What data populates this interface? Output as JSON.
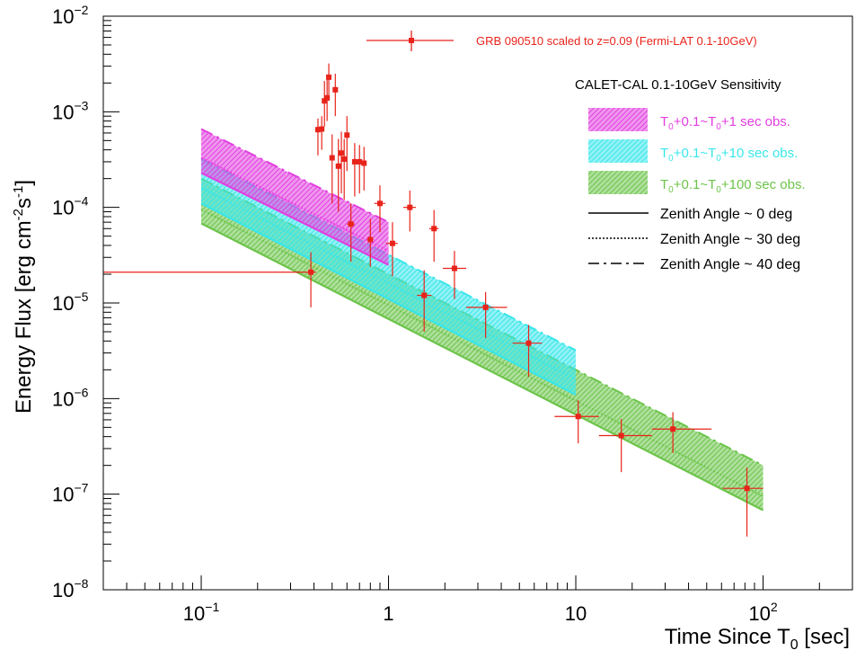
{
  "chart_data": {
    "type": "scatter",
    "xscale": "log",
    "yscale": "log",
    "xlim": [
      0.03,
      300
    ],
    "ylim": [
      1e-08,
      0.01
    ],
    "xlabel": {
      "main": "Time Since T",
      "sub": "0",
      "tail": " [sec]"
    },
    "ylabel": "Energy Flux [erg cm-2s-1]",
    "x_ticks": [
      {
        "value": 0.1,
        "base": "10",
        "exp": "−1"
      },
      {
        "value": 1,
        "base": "1",
        "exp": ""
      },
      {
        "value": 10,
        "base": "10",
        "exp": ""
      },
      {
        "value": 100,
        "base": "10",
        "exp": "2"
      }
    ],
    "y_ticks": [
      {
        "value": 0.01,
        "base": "10",
        "exp": "−2"
      },
      {
        "value": 0.001,
        "base": "10",
        "exp": "−3"
      },
      {
        "value": 0.0001,
        "base": "10",
        "exp": "−4"
      },
      {
        "value": 1e-05,
        "base": "10",
        "exp": "−5"
      },
      {
        "value": 1e-06,
        "base": "10",
        "exp": "−6"
      },
      {
        "value": 1e-07,
        "base": "10",
        "exp": "−7"
      },
      {
        "value": 1e-08,
        "base": "10",
        "exp": "−8"
      }
    ],
    "grb": {
      "name": "GRB 090510 scaled to z=0.09 (Fermi-LAT 0.1-10GeV)",
      "color": "#e8231a",
      "points": [
        {
          "x": 0.385,
          "xlo": 0.03,
          "xhi": 0.41,
          "y": 2.1e-05,
          "ylo": 9e-06,
          "yhi": 3.4e-05
        },
        {
          "x": 0.42,
          "xlo": 0.41,
          "xhi": 0.43,
          "y": 0.00065,
          "ylo": 0.00035,
          "yhi": 0.00085
        },
        {
          "x": 0.44,
          "xlo": 0.43,
          "xhi": 0.45,
          "y": 0.00066,
          "ylo": 0.0004,
          "yhi": 0.0009
        },
        {
          "x": 0.455,
          "xlo": 0.445,
          "xhi": 0.465,
          "y": 0.0013,
          "ylo": 0.0007,
          "yhi": 0.0021
        },
        {
          "x": 0.47,
          "xlo": 0.46,
          "xhi": 0.48,
          "y": 0.0014,
          "ylo": 0.0008,
          "yhi": 0.0022
        },
        {
          "x": 0.48,
          "xlo": 0.47,
          "xhi": 0.49,
          "y": 0.0023,
          "ylo": 0.0013,
          "yhi": 0.0032
        },
        {
          "x": 0.5,
          "xlo": 0.49,
          "xhi": 0.51,
          "y": 0.00033,
          "ylo": 0.00011,
          "yhi": 0.00058
        },
        {
          "x": 0.52,
          "xlo": 0.505,
          "xhi": 0.535,
          "y": 0.0017,
          "ylo": 0.0009,
          "yhi": 0.0025
        },
        {
          "x": 0.54,
          "xlo": 0.525,
          "xhi": 0.555,
          "y": 0.00027,
          "ylo": 9e-05,
          "yhi": 0.00052
        },
        {
          "x": 0.56,
          "xlo": 0.545,
          "xhi": 0.575,
          "y": 0.00037,
          "ylo": 0.00014,
          "yhi": 0.00062
        },
        {
          "x": 0.58,
          "xlo": 0.565,
          "xhi": 0.595,
          "y": 0.00032,
          "ylo": 0.00012,
          "yhi": 0.00052
        },
        {
          "x": 0.6,
          "xlo": 0.585,
          "xhi": 0.615,
          "y": 0.00057,
          "ylo": 0.00024,
          "yhi": 0.0009
        },
        {
          "x": 0.63,
          "xlo": 0.6,
          "xhi": 0.66,
          "y": 6.7e-05,
          "ylo": 2.7e-05,
          "yhi": 0.00011
        },
        {
          "x": 0.66,
          "xlo": 0.64,
          "xhi": 0.68,
          "y": 0.0003,
          "ylo": 0.00013,
          "yhi": 0.00047
        },
        {
          "x": 0.7,
          "xlo": 0.68,
          "xhi": 0.72,
          "y": 0.0003,
          "ylo": 0.00014,
          "yhi": 0.00045
        },
        {
          "x": 0.74,
          "xlo": 0.72,
          "xhi": 0.76,
          "y": 0.00029,
          "ylo": 0.00015,
          "yhi": 0.00043
        },
        {
          "x": 0.8,
          "xlo": 0.77,
          "xhi": 0.83,
          "y": 4.6e-05,
          "ylo": 2.4e-05,
          "yhi": 7.6e-05
        },
        {
          "x": 0.9,
          "xlo": 0.84,
          "xhi": 0.96,
          "y": 0.00011,
          "ylo": 5.5e-05,
          "yhi": 0.00017
        },
        {
          "x": 1.05,
          "xlo": 0.97,
          "xhi": 1.12,
          "y": 4.2e-05,
          "ylo": 1.9e-05,
          "yhi": 7e-05
        },
        {
          "x": 1.3,
          "xlo": 1.2,
          "xhi": 1.4,
          "y": 0.0001,
          "ylo": 5.6e-05,
          "yhi": 0.00015
        },
        {
          "x": 1.55,
          "xlo": 1.42,
          "xhi": 1.7,
          "y": 1.2e-05,
          "ylo": 5e-06,
          "yhi": 2.2e-05
        },
        {
          "x": 1.75,
          "xlo": 1.65,
          "xhi": 1.85,
          "y": 6e-05,
          "ylo": 2.7e-05,
          "yhi": 9.4e-05
        },
        {
          "x": 2.25,
          "xlo": 1.95,
          "xhi": 2.6,
          "y": 2.3e-05,
          "ylo": 1.1e-05,
          "yhi": 3.5e-05
        },
        {
          "x": 3.3,
          "xlo": 2.6,
          "xhi": 4.3,
          "y": 9e-06,
          "ylo": 4.3e-06,
          "yhi": 1.3e-05
        },
        {
          "x": 5.6,
          "xlo": 4.6,
          "xhi": 6.6,
          "y": 3.8e-06,
          "ylo": 1.7e-06,
          "yhi": 5.9e-06
        },
        {
          "x": 10.3,
          "xlo": 7.7,
          "xhi": 13.3,
          "y": 6.5e-07,
          "ylo": 3.4e-07,
          "yhi": 9.6e-07
        },
        {
          "x": 17.5,
          "xlo": 13.3,
          "xhi": 25.5,
          "y": 4.1e-07,
          "ylo": 1.7e-07,
          "yhi": 6.1e-07
        },
        {
          "x": 33,
          "xlo": 25.5,
          "xhi": 53,
          "y": 4.8e-07,
          "ylo": 2.7e-07,
          "yhi": 7.2e-07
        },
        {
          "x": 82,
          "xlo": 61,
          "xhi": 100,
          "y": 1.15e-07,
          "ylo": 3.6e-08,
          "yhi": 1.9e-07
        }
      ]
    },
    "sensitivity": {
      "legend_title": "CALET-CAL 0.1-10GeV Sensitivity",
      "bands": [
        {
          "name": "T0+0.1~T0+1 sec obs.",
          "label": {
            "a": "T",
            "s1": "0",
            "b": "+0.1~T",
            "s2": "0",
            "c": "+1 sec obs."
          },
          "color": "#e23fe0",
          "x": [
            0.1,
            1
          ],
          "low": [
            0.00023,
            2.5e-05
          ],
          "high": [
            0.00066,
            7e-05
          ],
          "mid": [
            0.00033,
            3.5e-05
          ]
        },
        {
          "name": "T0+0.1~T0+10 sec obs.",
          "label": {
            "a": "T",
            "s1": "0",
            "b": "+0.1~T",
            "s2": "0",
            "c": "+10 sec obs."
          },
          "color": "#38e6ea",
          "x": [
            0.1,
            10
          ],
          "low": [
            0.00011,
            1.1e-06
          ],
          "high": [
            0.00032,
            3.2e-06
          ],
          "mid": [
            0.00016,
            1.6e-06
          ]
        },
        {
          "name": "T0+0.1~T0+100 sec obs.",
          "label": {
            "a": "T",
            "s1": "0",
            "b": "+0.1~T",
            "s2": "0",
            "c": "+100 sec obs."
          },
          "color": "#6cc44a",
          "x": [
            0.1,
            100
          ],
          "low": [
            6.8e-05,
            6.8e-08
          ],
          "high": [
            0.0002,
            2e-07
          ],
          "mid": [
            9.5e-05,
            9.5e-08
          ]
        }
      ],
      "line_styles": [
        {
          "label": "Zenith Angle ~ 0 deg",
          "dash": "solid"
        },
        {
          "label": "Zenith Angle ~ 30 deg",
          "dash": "dotted"
        },
        {
          "label": "Zenith Angle ~ 40 deg",
          "dash": "dash-dot"
        }
      ]
    }
  }
}
